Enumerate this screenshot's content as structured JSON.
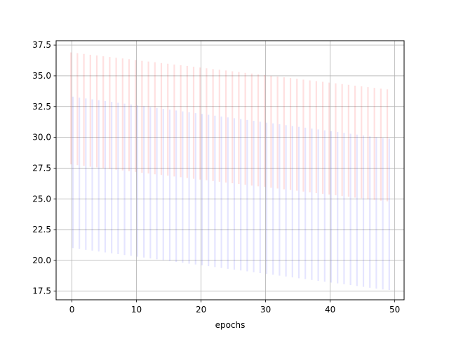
{
  "chart_data": {
    "type": "errorbar",
    "title": "",
    "xlabel": "epochs",
    "ylabel": "",
    "xlim": [
      -2.45,
      51.45
    ],
    "ylim": [
      16.8,
      37.85
    ],
    "xticks": [
      0,
      10,
      20,
      30,
      40,
      50
    ],
    "xtick_labels": [
      "0",
      "10",
      "20",
      "30",
      "40",
      "50"
    ],
    "yticks": [
      17.5,
      20.0,
      22.5,
      25.0,
      27.5,
      30.0,
      32.5,
      35.0,
      37.5
    ],
    "ytick_labels": [
      "17.5",
      "20.0",
      "22.5",
      "25.0",
      "27.5",
      "30.0",
      "32.5",
      "35.0",
      "37.5"
    ],
    "grid": true,
    "legend": "none",
    "series": [
      {
        "color": "#ff0000",
        "alpha": 0.12,
        "x_offset": -0.15,
        "x_start": 0,
        "x_step": 1,
        "count": 50,
        "upper": [
          36.9,
          36.84,
          36.78,
          36.71,
          36.65,
          36.59,
          36.53,
          36.47,
          36.41,
          36.35,
          36.29,
          36.22,
          36.16,
          36.1,
          36.04,
          35.98,
          35.92,
          35.86,
          35.8,
          35.73,
          35.67,
          35.61,
          35.55,
          35.49,
          35.43,
          35.37,
          35.31,
          35.24,
          35.18,
          35.12,
          35.06,
          35.0,
          34.94,
          34.88,
          34.82,
          34.76,
          34.69,
          34.63,
          34.57,
          34.51,
          34.45,
          34.39,
          34.33,
          34.27,
          34.2,
          34.14,
          34.08,
          34.02,
          33.96,
          33.9
        ],
        "lower": [
          27.8,
          27.74,
          27.68,
          27.61,
          27.55,
          27.49,
          27.43,
          27.37,
          27.31,
          27.25,
          27.19,
          27.12,
          27.06,
          27.0,
          26.94,
          26.88,
          26.82,
          26.76,
          26.7,
          26.63,
          26.57,
          26.51,
          26.45,
          26.39,
          26.33,
          26.27,
          26.21,
          26.14,
          26.08,
          26.02,
          25.96,
          25.9,
          25.84,
          25.78,
          25.72,
          25.66,
          25.59,
          25.53,
          25.47,
          25.41,
          25.35,
          25.29,
          25.23,
          25.17,
          25.1,
          25.04,
          24.98,
          24.92,
          24.86,
          24.8
        ]
      },
      {
        "color": "#0000ff",
        "alpha": 0.1,
        "x_offset": 0.15,
        "x_start": 0,
        "x_step": 1,
        "count": 50,
        "upper": [
          33.3,
          33.23,
          33.16,
          33.09,
          33.02,
          32.95,
          32.88,
          32.81,
          32.74,
          32.67,
          32.6,
          32.53,
          32.46,
          32.39,
          32.32,
          32.25,
          32.18,
          32.11,
          32.04,
          31.97,
          31.9,
          31.83,
          31.76,
          31.69,
          31.62,
          31.55,
          31.48,
          31.41,
          31.34,
          31.27,
          31.2,
          31.13,
          31.06,
          30.99,
          30.92,
          30.85,
          30.78,
          30.71,
          30.64,
          30.57,
          30.5,
          30.43,
          30.36,
          30.29,
          30.22,
          30.15,
          30.08,
          30.01,
          29.94,
          29.9
        ],
        "lower": [
          21.0,
          20.93,
          20.86,
          20.79,
          20.72,
          20.65,
          20.58,
          20.51,
          20.44,
          20.37,
          20.3,
          20.23,
          20.16,
          20.09,
          20.02,
          19.95,
          19.88,
          19.81,
          19.74,
          19.67,
          19.6,
          19.53,
          19.46,
          19.39,
          19.32,
          19.25,
          19.18,
          19.11,
          19.04,
          18.97,
          18.9,
          18.83,
          18.76,
          18.69,
          18.62,
          18.55,
          18.48,
          18.41,
          18.34,
          18.27,
          18.2,
          18.13,
          18.06,
          17.99,
          17.92,
          17.85,
          17.78,
          17.71,
          17.64,
          17.6
        ]
      }
    ]
  }
}
